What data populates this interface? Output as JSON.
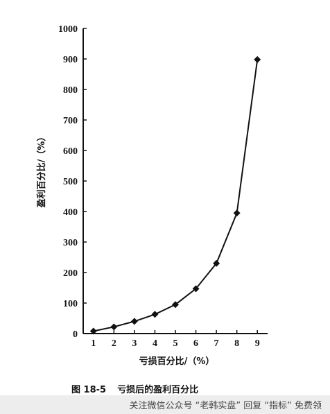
{
  "chart_data": {
    "type": "line",
    "xlabel": "亏损百分比/（%）",
    "ylabel": "盈利百分比/（%）",
    "ylim": [
      0,
      1000
    ],
    "xlim": [
      0.5,
      9.5
    ],
    "x": [
      1,
      2,
      3,
      4,
      5,
      6,
      7,
      8,
      9
    ],
    "y_ticks": [
      0,
      100,
      200,
      300,
      400,
      500,
      600,
      700,
      800,
      900,
      1000
    ],
    "series": [
      {
        "values": [
          8,
          22,
          40,
          63,
          95,
          147,
          230,
          395,
          898
        ]
      }
    ],
    "marker": "diamond",
    "grid": false
  },
  "caption": {
    "number": "图 18-5",
    "text": "亏损后的盈利百分比"
  },
  "watermark": {
    "text": "关注微信公众号 “老韩实盘” 回复 “指标” 免费领"
  }
}
